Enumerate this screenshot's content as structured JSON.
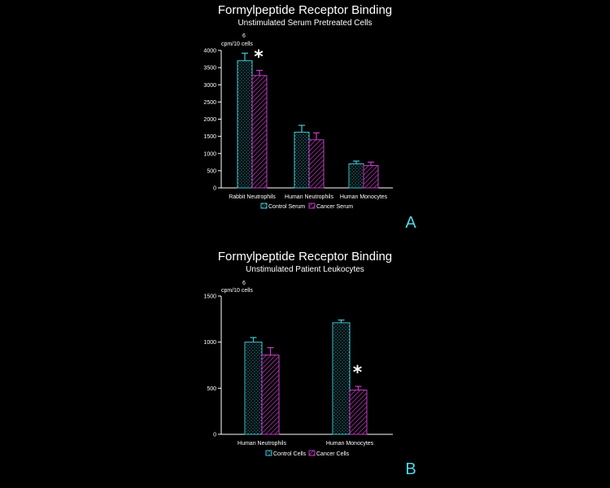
{
  "chart_data": [
    {
      "type": "bar",
      "title": "Formylpeptide Receptor Binding",
      "subtitle": "Unstimulated Serum Pretreated Cells",
      "ylabel_exponent": "6",
      "ylabel": "cpm/10 cells",
      "ylim": [
        0,
        4000
      ],
      "yticks": [
        0,
        500,
        1000,
        1500,
        2000,
        2500,
        3000,
        3500,
        4000
      ],
      "categories": [
        "Rabbit Neutrophils",
        "Human Neutrophils",
        "Human Monocytes"
      ],
      "series": [
        {
          "name": "Control Serum",
          "values": [
            3700,
            1620,
            700
          ],
          "errors": [
            220,
            200,
            80
          ],
          "color": "#3ec8d6",
          "pattern": "dots"
        },
        {
          "name": "Cancer Serum",
          "values": [
            3270,
            1400,
            650
          ],
          "errors": [
            150,
            200,
            100
          ],
          "color": "#c83cc8",
          "pattern": "hatch"
        }
      ],
      "annotations": [
        {
          "text": "*",
          "category_index": 0
        }
      ],
      "panel_label": "A",
      "legend": "bottom"
    },
    {
      "type": "bar",
      "title": "Formylpeptide Receptor Binding",
      "subtitle": "Unstimulated Patient Leukocytes",
      "ylabel_exponent": "6",
      "ylabel": "cpm/10 cells",
      "ylim": [
        0,
        1500
      ],
      "yticks": [
        0,
        500,
        1000,
        1500
      ],
      "categories": [
        "Human Neutrophils",
        "Human Monocytes"
      ],
      "series": [
        {
          "name": "Control Cells",
          "values": [
            1000,
            1210
          ],
          "errors": [
            50,
            30
          ],
          "color": "#3ec8d6",
          "pattern": "dots"
        },
        {
          "name": "Cancer Cells",
          "values": [
            860,
            480
          ],
          "errors": [
            80,
            40
          ],
          "color": "#c83cc8",
          "pattern": "hatch"
        }
      ],
      "annotations": [
        {
          "text": "*",
          "category_index": 1
        }
      ],
      "panel_label": "B",
      "legend": "bottom"
    }
  ]
}
